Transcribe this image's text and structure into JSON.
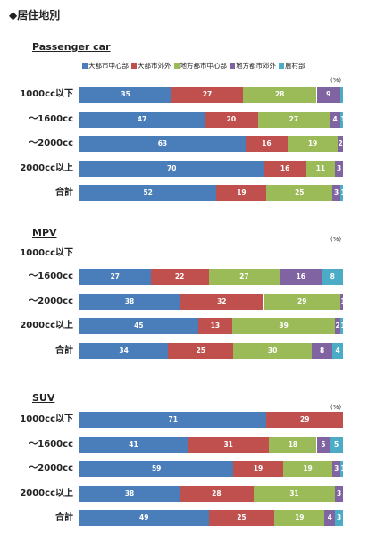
{
  "header": "◆居住地別",
  "legend": [
    "大都市中心部",
    "大都市郊外",
    "地方都市中心部",
    "地方都市郊外",
    "農村部"
  ],
  "colors": [
    "#4a7ebb",
    "#c0504d",
    "#9bbb59",
    "#8064a2",
    "#4bacc6"
  ],
  "unit": "(%)",
  "chart_data": [
    {
      "type": "bar",
      "title": "Passenger car",
      "categories": [
        "1000cc以下",
        "～1600cc",
        "～2000cc",
        "2000cc以上",
        "合計"
      ],
      "series": [
        {
          "name": "大都市中心部",
          "values": [
            35,
            47,
            63,
            70,
            52
          ]
        },
        {
          "name": "大都市郊外",
          "values": [
            27,
            20,
            16,
            16,
            19
          ]
        },
        {
          "name": "地方都市中心部",
          "values": [
            28,
            27,
            19,
            11,
            25
          ]
        },
        {
          "name": "地方都市郊外",
          "values": [
            9,
            4,
            2,
            3,
            3
          ]
        },
        {
          "name": "農村部",
          "values": [
            1,
            1,
            0,
            0,
            1
          ]
        }
      ],
      "labels": [
        [
          "35",
          "27",
          "28",
          "9",
          ""
        ],
        [
          "47",
          "20",
          "27",
          "4",
          "1"
        ],
        [
          "63",
          "16",
          "19",
          "2",
          ""
        ],
        [
          "70",
          "16",
          "11",
          "3",
          ""
        ],
        [
          "52",
          "19",
          "25",
          "3",
          "1"
        ]
      ]
    },
    {
      "type": "bar",
      "title": "MPV",
      "categories": [
        "1000cc以下",
        "～1600cc",
        "～2000cc",
        "2000cc以上",
        "合計"
      ],
      "series": [
        {
          "name": "大都市中心部",
          "values": [
            0,
            27,
            38,
            45,
            34
          ]
        },
        {
          "name": "大都市郊外",
          "values": [
            0,
            22,
            32,
            13,
            25
          ]
        },
        {
          "name": "地方都市中心部",
          "values": [
            0,
            27,
            29,
            39,
            30
          ]
        },
        {
          "name": "地方都市郊外",
          "values": [
            0,
            16,
            1,
            2,
            8
          ]
        },
        {
          "name": "農村部",
          "values": [
            0,
            8,
            0,
            1,
            4
          ]
        }
      ],
      "labels": [
        [
          "",
          "",
          "",
          "",
          ""
        ],
        [
          "27",
          "22",
          "27",
          "16",
          "8"
        ],
        [
          "38",
          "32",
          "29",
          "1",
          ""
        ],
        [
          "45",
          "13",
          "39",
          "2",
          "1"
        ],
        [
          "34",
          "25",
          "30",
          "8",
          "4"
        ]
      ]
    },
    {
      "type": "bar",
      "title": "SUV",
      "categories": [
        "1000cc以下",
        "～1600cc",
        "～2000cc",
        "2000cc以上",
        "合計"
      ],
      "series": [
        {
          "name": "大都市中心部",
          "values": [
            71,
            41,
            59,
            38,
            49
          ]
        },
        {
          "name": "大都市郊外",
          "values": [
            29,
            31,
            19,
            28,
            25
          ]
        },
        {
          "name": "地方都市中心部",
          "values": [
            0,
            18,
            19,
            31,
            19
          ]
        },
        {
          "name": "地方都市郊外",
          "values": [
            0,
            5,
            3,
            3,
            4
          ]
        },
        {
          "name": "農村部",
          "values": [
            0,
            5,
            1,
            0,
            3
          ]
        }
      ],
      "labels": [
        [
          "71",
          "29",
          "",
          "",
          ""
        ],
        [
          "41",
          "31",
          "18",
          "5",
          "5"
        ],
        [
          "59",
          "19",
          "19",
          "3",
          "1"
        ],
        [
          "38",
          "28",
          "31",
          "3",
          ""
        ],
        [
          "49",
          "25",
          "19",
          "4",
          "3"
        ]
      ]
    }
  ]
}
